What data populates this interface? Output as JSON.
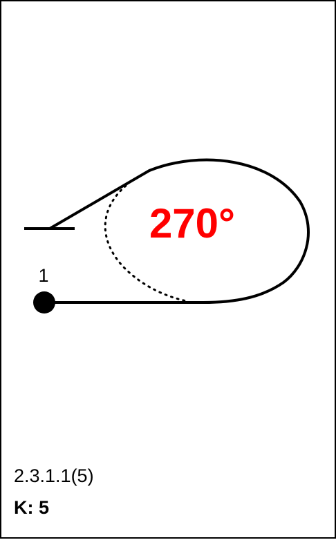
{
  "figure": {
    "angle_label": "270°",
    "angle_color": "#ff0000",
    "start_point_label": "1",
    "line_color": "#000000"
  },
  "caption": {
    "code": "2.3.1.1(5)",
    "k_factor": "K: 5"
  }
}
